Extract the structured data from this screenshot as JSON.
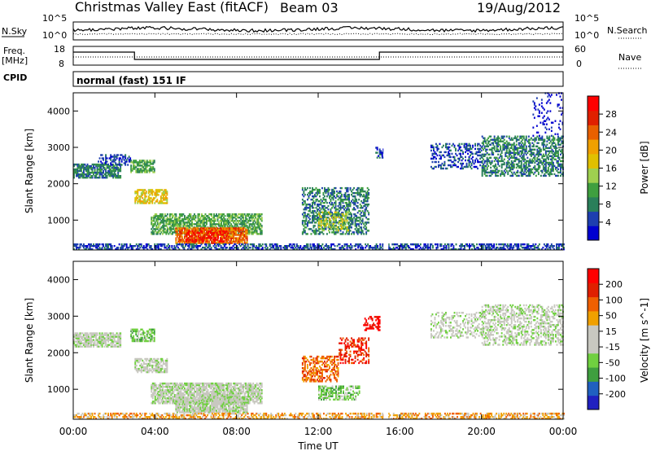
{
  "header": {
    "title": "Christmas Valley East (fitACF)",
    "beam": "Beam 03",
    "date": "19/Aug/2012"
  },
  "panels": {
    "nsky": {
      "left_label": "N.Sky",
      "right_label": "N.Search",
      "left_ticks": [
        "10^5",
        "10^0"
      ],
      "right_ticks": [
        "10^5",
        "10^0"
      ]
    },
    "freq": {
      "left_label_lines": [
        "Freq.",
        "[MHz]"
      ],
      "right_label": "Nave",
      "left_ticks": [
        "18",
        "8"
      ],
      "right_ticks": [
        "60",
        "0"
      ]
    },
    "cpid": {
      "label": "CPID",
      "text": "normal (fast) 151 IF"
    }
  },
  "colors": {
    "power": [
      "#0000d0",
      "#1e3fb0",
      "#2a7f5a",
      "#3f9f3f",
      "#9fd04f",
      "#e0c000",
      "#f0a000",
      "#e86000",
      "#e02000",
      "#ff0000"
    ],
    "velocity": [
      "#2020c0",
      "#2060c0",
      "#3f9f3f",
      "#70d040",
      "#c8c8c0",
      "#c8c8c0",
      "#f0a000",
      "#f06000",
      "#e02000",
      "#ff0000"
    ]
  },
  "chart_data": [
    {
      "type": "heatmap",
      "name": "power",
      "xlabel": "",
      "ylabel": "Slant Range [km]",
      "x_ticks": [
        "00:00",
        "04:00",
        "08:00",
        "12:00",
        "16:00",
        "20:00",
        "00:00"
      ],
      "x_range_hours": [
        0,
        24
      ],
      "ylim": [
        180,
        4500
      ],
      "y_ticks": [
        1000,
        2000,
        3000,
        4000
      ],
      "colorbar": {
        "label": "Power [dB]",
        "ticks": [
          "28",
          "24",
          "20",
          "16",
          "12",
          "8",
          "4"
        ]
      },
      "regions": [
        {
          "t0": 0.0,
          "t1": 2.3,
          "r0": 2150,
          "r1": 2550,
          "level": 2,
          "density": 0.75
        },
        {
          "t0": 1.2,
          "t1": 2.8,
          "r0": 2500,
          "r1": 2800,
          "level": 1,
          "density": 0.4
        },
        {
          "t0": 2.8,
          "t1": 4.0,
          "r0": 2300,
          "r1": 2650,
          "level": 3,
          "density": 0.7
        },
        {
          "t0": 3.0,
          "t1": 4.6,
          "r0": 1450,
          "r1": 1850,
          "level": 5,
          "density": 0.65
        },
        {
          "t0": 3.8,
          "t1": 9.2,
          "r0": 600,
          "r1": 1150,
          "level": 3,
          "density": 0.7
        },
        {
          "t0": 5.0,
          "t1": 8.5,
          "r0": 350,
          "r1": 800,
          "level": 7,
          "density": 0.8
        },
        {
          "t0": 5.5,
          "t1": 7.5,
          "r0": 400,
          "r1": 700,
          "level": 9,
          "density": 0.45
        },
        {
          "t0": 11.2,
          "t1": 14.5,
          "r0": 600,
          "r1": 1900,
          "level": 2,
          "density": 0.45
        },
        {
          "t0": 12.0,
          "t1": 13.5,
          "r0": 700,
          "r1": 1200,
          "level": 4,
          "density": 0.45
        },
        {
          "t0": 14.8,
          "t1": 15.2,
          "r0": 2700,
          "r1": 3000,
          "level": 1,
          "density": 0.5
        },
        {
          "t0": 17.5,
          "t1": 20.0,
          "r0": 2400,
          "r1": 3100,
          "level": 1,
          "density": 0.35
        },
        {
          "t0": 20.0,
          "t1": 24.0,
          "r0": 2200,
          "r1": 3300,
          "level": 2,
          "density": 0.5
        },
        {
          "t0": 22.5,
          "t1": 24.0,
          "r0": 3300,
          "r1": 4500,
          "level": 0,
          "density": 0.12
        },
        {
          "t0": 0.0,
          "t1": 24.0,
          "r0": 180,
          "r1": 330,
          "level": 1,
          "density": 0.55
        }
      ]
    },
    {
      "type": "heatmap",
      "name": "velocity",
      "xlabel": "Time UT",
      "ylabel": "Slant Range [km]",
      "x_ticks": [
        "00:00",
        "04:00",
        "08:00",
        "12:00",
        "16:00",
        "20:00",
        "00:00"
      ],
      "x_range_hours": [
        0,
        24
      ],
      "ylim": [
        180,
        4500
      ],
      "y_ticks": [
        1000,
        2000,
        3000,
        4000
      ],
      "colorbar": {
        "label": "Velocity [m s^-1]",
        "ticks": [
          "200",
          "100",
          "50",
          "15",
          "-15",
          "-50",
          "-100",
          "-200"
        ]
      },
      "regions": [
        {
          "t0": 0.0,
          "t1": 2.3,
          "r0": 2150,
          "r1": 2550,
          "level": 4,
          "density": 0.75
        },
        {
          "t0": 2.8,
          "t1": 4.0,
          "r0": 2300,
          "r1": 2650,
          "level": 3,
          "density": 0.6
        },
        {
          "t0": 3.0,
          "t1": 4.6,
          "r0": 1450,
          "r1": 1850,
          "level": 4,
          "density": 0.65
        },
        {
          "t0": 3.8,
          "t1": 9.2,
          "r0": 600,
          "r1": 1150,
          "level": 4,
          "density": 0.75
        },
        {
          "t0": 5.0,
          "t1": 8.5,
          "r0": 350,
          "r1": 800,
          "level": 4,
          "density": 0.8
        },
        {
          "t0": 11.2,
          "t1": 13.0,
          "r0": 1200,
          "r1": 1900,
          "level": 7,
          "density": 0.5
        },
        {
          "t0": 13.0,
          "t1": 14.5,
          "r0": 1700,
          "r1": 2400,
          "level": 8,
          "density": 0.4
        },
        {
          "t0": 14.2,
          "t1": 15.0,
          "r0": 2600,
          "r1": 3000,
          "level": 9,
          "density": 0.45
        },
        {
          "t0": 12.0,
          "t1": 14.0,
          "r0": 700,
          "r1": 1100,
          "level": 3,
          "density": 0.55
        },
        {
          "t0": 17.5,
          "t1": 20.0,
          "r0": 2400,
          "r1": 3100,
          "level": 4,
          "density": 0.3
        },
        {
          "t0": 20.0,
          "t1": 24.0,
          "r0": 2200,
          "r1": 3300,
          "level": 4,
          "density": 0.45
        },
        {
          "t0": 0.0,
          "t1": 24.0,
          "r0": 180,
          "r1": 330,
          "level": 6,
          "density": 0.5
        }
      ]
    }
  ]
}
